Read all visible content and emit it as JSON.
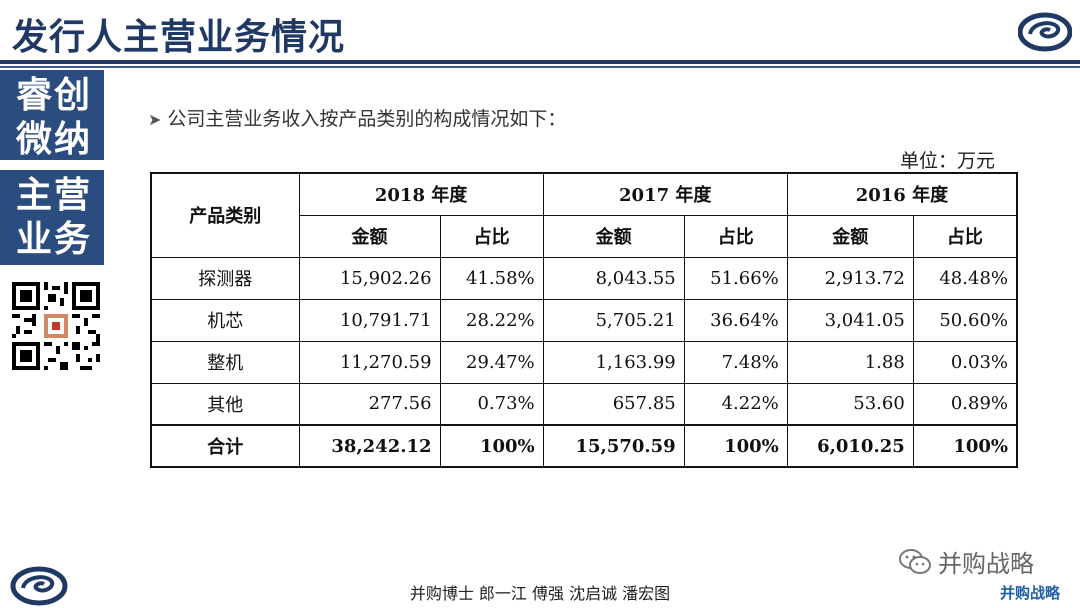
{
  "header": {
    "title": "发行人主营业务情况"
  },
  "sidebar": {
    "box1": {
      "line1": "睿创",
      "line2": "微纳"
    },
    "box2": {
      "line1": "主营",
      "line2": "业务"
    }
  },
  "bullet": {
    "text": "公司主营业务收入按产品类别的构成情况如下："
  },
  "unit": "单位：万元",
  "table": {
    "category_header": "产品类别",
    "years": [
      "2018 年度",
      "2017 年度",
      "2016 年度"
    ],
    "sub_headers": [
      "金额",
      "占比"
    ],
    "rows": [
      {
        "name": "探测器",
        "cells": [
          "15,902.26",
          "41.58%",
          "8,043.55",
          "51.66%",
          "2,913.72",
          "48.48%"
        ]
      },
      {
        "name": "机芯",
        "cells": [
          "10,791.71",
          "28.22%",
          "5,705.21",
          "36.64%",
          "3,041.05",
          "50.60%"
        ]
      },
      {
        "name": "整机",
        "cells": [
          "11,270.59",
          "29.47%",
          "1,163.99",
          "7.48%",
          "1.88",
          "0.03%"
        ]
      },
      {
        "name": "其他",
        "cells": [
          "277.56",
          "0.73%",
          "657.85",
          "4.22%",
          "53.60",
          "0.89%"
        ]
      }
    ],
    "total": {
      "name": "合计",
      "cells": [
        "38,242.12",
        "100%",
        "15,570.59",
        "100%",
        "6,010.25",
        "100%"
      ]
    }
  },
  "footer": {
    "authors": "并购博士 郎一江 傅强 沈启诚 潘宏图"
  },
  "watermark": {
    "text": "并购战略",
    "brand": "并购战略",
    "icon": "wechat-icon"
  },
  "colors": {
    "primary": "#1f3864",
    "sidebar": "#2b4c7e"
  }
}
